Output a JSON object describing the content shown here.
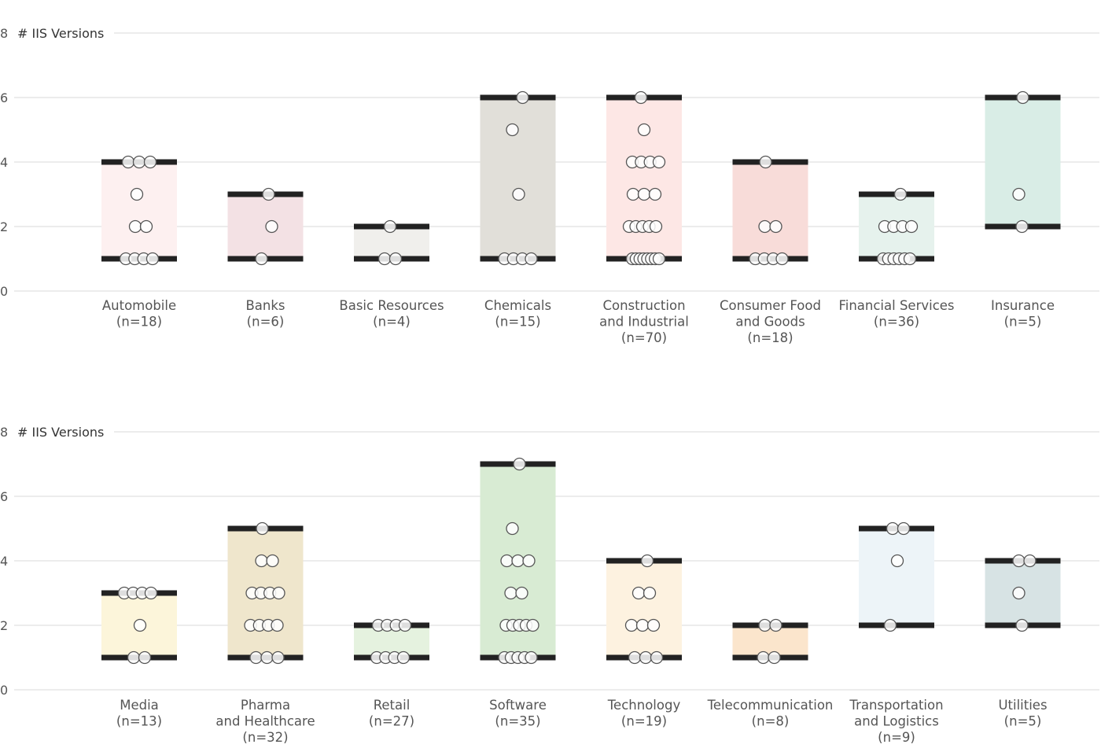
{
  "chart_data": [
    {
      "type": "scatter",
      "ylabel": "# IIS Versions",
      "ylim": [
        0,
        8
      ],
      "yticks": [
        0,
        2,
        4,
        6,
        8
      ],
      "grid": true,
      "categories": [
        {
          "name": [
            "Automobile"
          ],
          "n": "(n=18)",
          "min": 1,
          "max": 4,
          "color": "#fdf0f0",
          "points": [
            4,
            4,
            4,
            3,
            2,
            2,
            1,
            1,
            1,
            1
          ]
        },
        {
          "name": [
            "Banks"
          ],
          "n": "(n=6)",
          "min": 1,
          "max": 3,
          "color": "#f3e1e4",
          "points": [
            3,
            2,
            1
          ]
        },
        {
          "name": [
            "Basic Resources"
          ],
          "n": "(n=4)",
          "min": 1,
          "max": 2,
          "color": "#f0efec",
          "points": [
            2,
            1,
            1
          ]
        },
        {
          "name": [
            "Chemicals"
          ],
          "n": "(n=15)",
          "min": 1,
          "max": 6,
          "color": "#e1dfd9",
          "points": [
            6,
            5,
            3,
            1,
            1,
            1,
            1
          ]
        },
        {
          "name": [
            "Construction",
            "and Industrial"
          ],
          "n": "(n=70)",
          "min": 1,
          "max": 6,
          "color": "#fde7e5",
          "points": [
            6,
            5,
            4,
            4,
            4,
            4,
            3,
            3,
            3,
            2,
            2,
            2,
            2,
            2,
            1,
            1,
            1,
            1,
            1,
            1,
            1,
            1
          ]
        },
        {
          "name": [
            "Consumer Food",
            "and Goods"
          ],
          "n": "(n=18)",
          "min": 1,
          "max": 4,
          "color": "#f8dcd9",
          "points": [
            4,
            2,
            2,
            1,
            1,
            1,
            1
          ]
        },
        {
          "name": [
            "Financial Services"
          ],
          "n": "(n=36)",
          "min": 1,
          "max": 3,
          "color": "#e6f2ed",
          "points": [
            3,
            2,
            2,
            2,
            2,
            1,
            1,
            1,
            1,
            1,
            1
          ]
        },
        {
          "name": [
            "Insurance"
          ],
          "n": "(n=5)",
          "min": 2,
          "max": 6,
          "color": "#d9ede6",
          "points": [
            6,
            3,
            2
          ]
        }
      ]
    },
    {
      "type": "scatter",
      "ylabel": "# IIS Versions",
      "ylim": [
        0,
        8
      ],
      "yticks": [
        0,
        2,
        4,
        6,
        8
      ],
      "grid": true,
      "categories": [
        {
          "name": [
            "Media"
          ],
          "n": "(n=13)",
          "min": 1,
          "max": 3,
          "color": "#fcf5da",
          "points": [
            3,
            3,
            3,
            3,
            2,
            1,
            1
          ]
        },
        {
          "name": [
            "Pharma",
            "and Healthcare"
          ],
          "n": "(n=32)",
          "min": 1,
          "max": 5,
          "color": "#efe6cc",
          "points": [
            5,
            4,
            4,
            3,
            3,
            3,
            3,
            2,
            2,
            2,
            2,
            1,
            1,
            1
          ]
        },
        {
          "name": [
            "Retail"
          ],
          "n": "(n=27)",
          "min": 1,
          "max": 2,
          "color": "#e5f2df",
          "points": [
            2,
            2,
            2,
            2,
            1,
            1,
            1,
            1
          ]
        },
        {
          "name": [
            "Software"
          ],
          "n": "(n=35)",
          "min": 1,
          "max": 7,
          "color": "#d8ebd3",
          "points": [
            7,
            5,
            4,
            4,
            4,
            3,
            3,
            2,
            2,
            2,
            2,
            2,
            1,
            1,
            1,
            1,
            1
          ]
        },
        {
          "name": [
            "Technology"
          ],
          "n": "(n=19)",
          "min": 1,
          "max": 4,
          "color": "#fdf2e0",
          "points": [
            4,
            3,
            3,
            2,
            2,
            2,
            1,
            1,
            1
          ]
        },
        {
          "name": [
            "Telecommunication"
          ],
          "n": "(n=8)",
          "min": 1,
          "max": 2,
          "color": "#fbe5cc",
          "points": [
            2,
            2,
            1,
            1
          ]
        },
        {
          "name": [
            "Transportation",
            "and Logistics"
          ],
          "n": "(n=9)",
          "min": 2,
          "max": 5,
          "color": "#edf4f8",
          "points": [
            5,
            5,
            4,
            2
          ]
        },
        {
          "name": [
            "Utilities"
          ],
          "n": "(n=5)",
          "min": 2,
          "max": 4,
          "color": "#d7e3e4",
          "points": [
            4,
            4,
            3,
            2
          ]
        }
      ]
    }
  ]
}
